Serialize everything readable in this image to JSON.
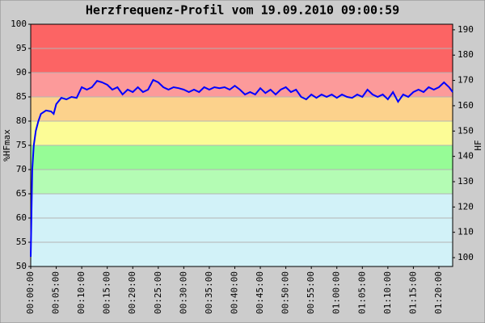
{
  "chart_data": {
    "type": "line",
    "title": "Herzfrequenz-Profil vom 19.09.2010 09:00:59",
    "y_label": "%HFmax",
    "y2_label": "HF",
    "zones": [
      {
        "from": 50,
        "to": 65,
        "color": "#d2f2f8"
      },
      {
        "from": 65,
        "to": 70,
        "color": "#b4fcb4"
      },
      {
        "from": 70,
        "to": 75,
        "color": "#96fc96"
      },
      {
        "from": 75,
        "to": 80,
        "color": "#fcfc96"
      },
      {
        "from": 80,
        "to": 85,
        "color": "#fcd28c"
      },
      {
        "from": 85,
        "to": 90,
        "color": "#fc9a9a"
      },
      {
        "from": 90,
        "to": 100,
        "color": "#fc6464"
      }
    ],
    "grid": true,
    "xlim": [
      0,
      82.7
    ],
    "xticks": [
      {
        "value": 0,
        "label": "00:00:00"
      },
      {
        "value": 5,
        "label": "00:05:00"
      },
      {
        "value": 10,
        "label": "00:10:00"
      },
      {
        "value": 15,
        "label": "00:15:00"
      },
      {
        "value": 20,
        "label": "00:20:00"
      },
      {
        "value": 25,
        "label": "00:25:00"
      },
      {
        "value": 30,
        "label": "00:30:00"
      },
      {
        "value": 35,
        "label": "00:35:00"
      },
      {
        "value": 40,
        "label": "00:40:00"
      },
      {
        "value": 45,
        "label": "00:45:00"
      },
      {
        "value": 50,
        "label": "00:50:00"
      },
      {
        "value": 55,
        "label": "00:55:00"
      },
      {
        "value": 60,
        "label": "01:00:00"
      },
      {
        "value": 65,
        "label": "01:05:00"
      },
      {
        "value": 70,
        "label": "01:10:00"
      },
      {
        "value": 75,
        "label": "01:15:00"
      },
      {
        "value": 80,
        "label": "01:20:00"
      }
    ],
    "ylim": [
      50,
      100
    ],
    "yticks": [
      50,
      55,
      60,
      65,
      70,
      75,
      80,
      85,
      90,
      95,
      100
    ],
    "y2lim": [
      96.5,
      192.2
    ],
    "y2ticks": [
      100,
      110,
      120,
      130,
      140,
      150,
      160,
      170,
      180,
      190
    ],
    "x": [
      0,
      0.3,
      0.6,
      1,
      1.5,
      2,
      3,
      4,
      4.5,
      5,
      6,
      7,
      8,
      9,
      10,
      11,
      12,
      13,
      14,
      15,
      16,
      17,
      18,
      19,
      20,
      21,
      22,
      23,
      24,
      25,
      26,
      27,
      28,
      29,
      30,
      31,
      32,
      33,
      34,
      35,
      36,
      37,
      38,
      39,
      40,
      41,
      42,
      43,
      44,
      45,
      46,
      47,
      48,
      49,
      50,
      51,
      52,
      53,
      54,
      55,
      56,
      57,
      58,
      59,
      60,
      61,
      62,
      63,
      64,
      65,
      66,
      67,
      68,
      69,
      70,
      71,
      72,
      73,
      74,
      75,
      76,
      77,
      78,
      79,
      80,
      81,
      82,
      82.7
    ],
    "series": [
      {
        "name": "HF",
        "color": "#0000ff",
        "values": [
          52,
          70,
          75,
          78,
          80,
          81.5,
          82.2,
          82,
          81.5,
          83.5,
          84.8,
          84.5,
          85,
          84.8,
          87,
          86.5,
          87,
          88.3,
          88,
          87.5,
          86.5,
          87,
          85.5,
          86.5,
          86,
          87,
          86,
          86.5,
          88.5,
          88,
          87,
          86.5,
          87,
          86.8,
          86.5,
          86,
          86.5,
          86,
          87,
          86.5,
          87,
          86.8,
          87,
          86.5,
          87.3,
          86.5,
          85.5,
          86,
          85.5,
          86.8,
          85.8,
          86.5,
          85.5,
          86.5,
          87,
          86,
          86.5,
          85,
          84.5,
          85.5,
          84.8,
          85.5,
          85,
          85.5,
          84.8,
          85.5,
          85,
          84.8,
          85.5,
          85,
          86.5,
          85.5,
          85,
          85.5,
          84.5,
          86,
          84,
          85.5,
          85,
          86,
          86.5,
          86,
          87,
          86.5,
          87,
          88,
          87,
          86
        ]
      }
    ]
  }
}
